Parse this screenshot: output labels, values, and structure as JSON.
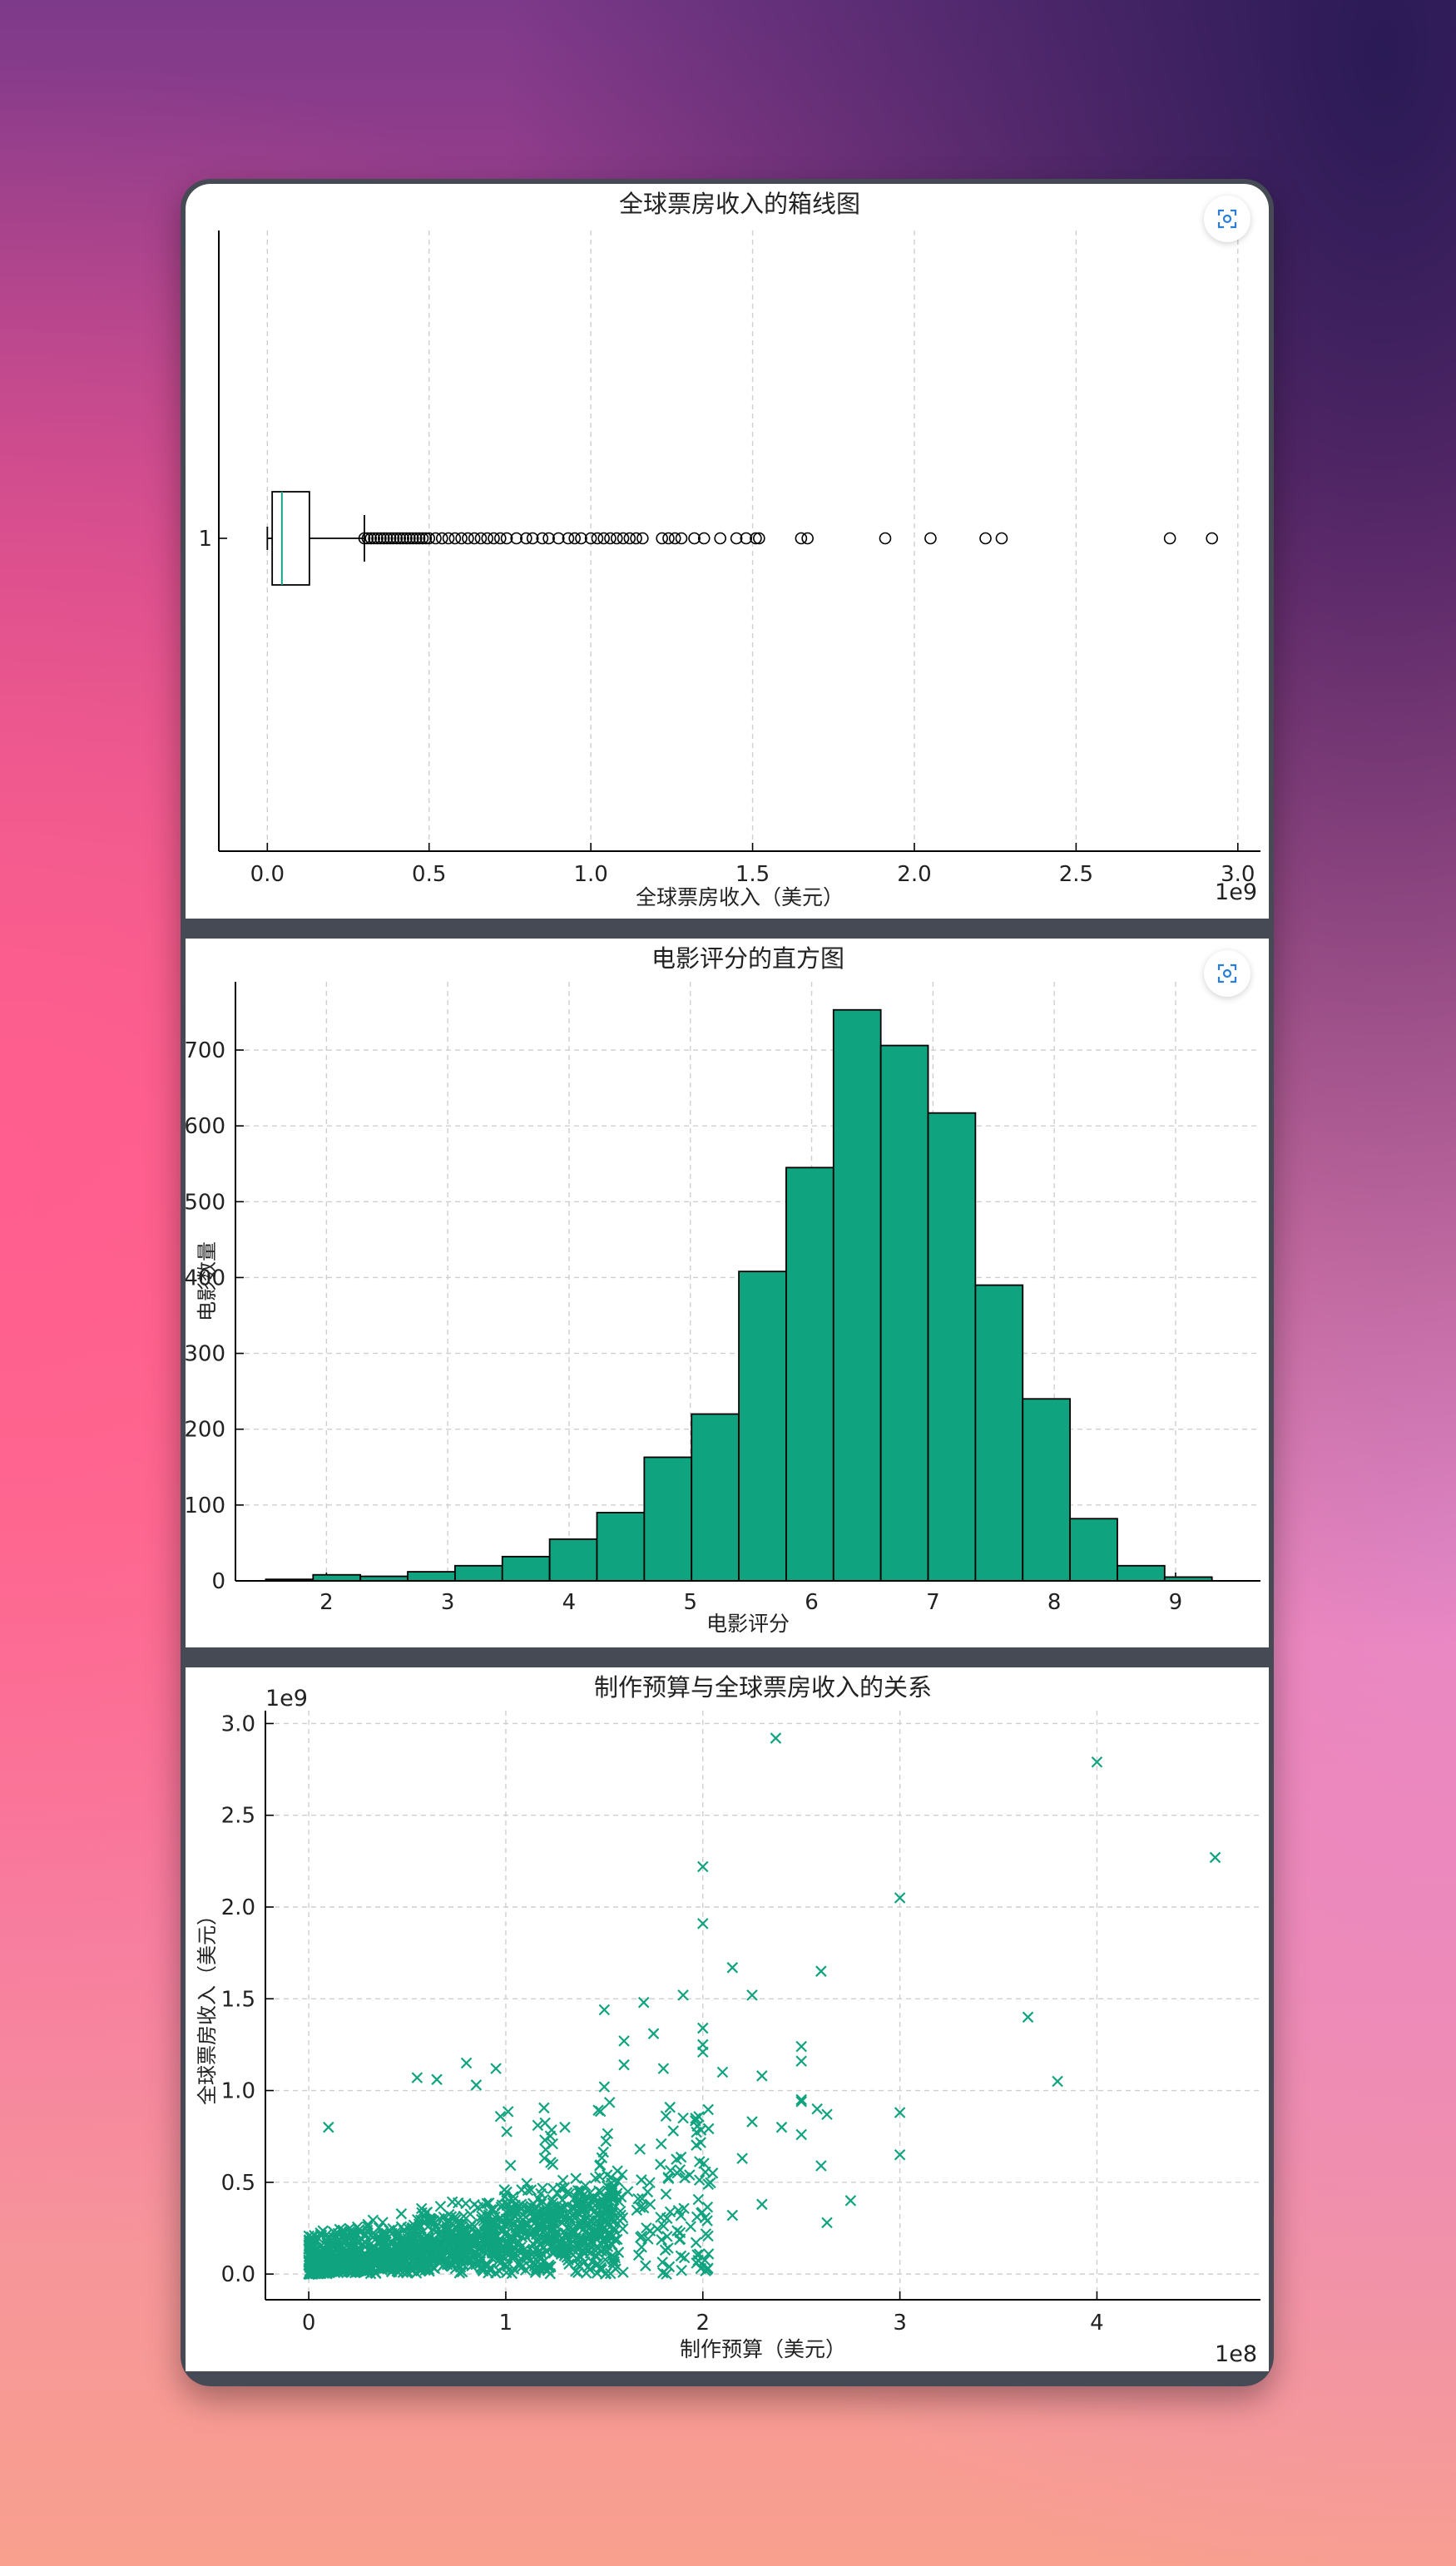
{
  "ui": {
    "accent": "#10a37f",
    "icons": [
      "focus-expand-icon"
    ]
  },
  "chart_data": [
    {
      "type": "box",
      "orientation": "horizontal",
      "title": "全球票房收入的箱线图",
      "xlabel": "全球票房收入（美元）",
      "x_offset_label": "1e9",
      "category_label": "1",
      "xlim": [
        -0.15,
        3.07
      ],
      "x_ticks": [
        0.0,
        0.5,
        1.0,
        1.5,
        2.0,
        2.5,
        3.0
      ],
      "x_tick_labels": [
        "0.0",
        "0.5",
        "1.0",
        "1.5",
        "2.0",
        "2.5",
        "3.0"
      ],
      "stats": {
        "whisker_low": 0.0,
        "q1": 0.015,
        "median": 0.045,
        "q3": 0.13,
        "whisker_high": 0.3
      },
      "outliers": [
        0.3,
        0.31,
        0.32,
        0.33,
        0.34,
        0.35,
        0.36,
        0.37,
        0.38,
        0.39,
        0.4,
        0.41,
        0.42,
        0.43,
        0.44,
        0.45,
        0.46,
        0.47,
        0.48,
        0.49,
        0.5,
        0.52,
        0.54,
        0.56,
        0.58,
        0.6,
        0.62,
        0.64,
        0.66,
        0.68,
        0.7,
        0.72,
        0.74,
        0.77,
        0.8,
        0.82,
        0.85,
        0.87,
        0.9,
        0.93,
        0.95,
        0.97,
        1.0,
        1.02,
        1.04,
        1.06,
        1.08,
        1.1,
        1.12,
        1.14,
        1.16,
        1.22,
        1.24,
        1.26,
        1.28,
        1.32,
        1.35,
        1.4,
        1.45,
        1.48,
        1.51,
        1.52,
        1.65,
        1.67,
        1.91,
        2.05,
        2.22,
        2.27,
        2.79,
        2.92
      ],
      "grid": true
    },
    {
      "type": "histogram",
      "title": "电影评分的直方图",
      "xlabel": "电影评分",
      "ylabel": "电影数量",
      "xlim": [
        1.25,
        9.7
      ],
      "ylim": [
        0,
        790
      ],
      "x_ticks": [
        2,
        3,
        4,
        5,
        6,
        7,
        8,
        9
      ],
      "y_ticks": [
        0,
        100,
        200,
        300,
        400,
        500,
        600,
        700
      ],
      "bin_edges": [
        1.5,
        1.89,
        2.28,
        2.67,
        3.06,
        3.45,
        3.84,
        4.23,
        4.62,
        5.01,
        5.4,
        5.79,
        6.18,
        6.57,
        6.96,
        7.35,
        7.74,
        8.13,
        8.52,
        8.91,
        9.3
      ],
      "counts": [
        2,
        8,
        6,
        12,
        20,
        32,
        55,
        90,
        163,
        220,
        408,
        545,
        753,
        706,
        617,
        390,
        240,
        82,
        20,
        5
      ],
      "bar_color": "#10a37f",
      "grid": true
    },
    {
      "type": "scatter",
      "title": "制作预算与全球票房收入的关系",
      "xlabel": "制作预算（美元）",
      "ylabel": "全球票房收入（美元）",
      "x_offset_label": "1e8",
      "y_offset_label": "1e9",
      "xlim": [
        -0.22,
        4.83
      ],
      "ylim": [
        -0.14,
        3.07
      ],
      "x_ticks": [
        0,
        1,
        2,
        3,
        4
      ],
      "y_ticks": [
        0.0,
        0.5,
        1.0,
        1.5,
        2.0,
        2.5,
        3.0
      ],
      "y_tick_labels": [
        "0.0",
        "0.5",
        "1.0",
        "1.5",
        "2.0",
        "2.5",
        "3.0"
      ],
      "marker": "x",
      "color": "#10a37f",
      "points": [
        [
          2.37,
          2.92
        ],
        [
          4.0,
          2.79
        ],
        [
          4.6,
          2.27
        ],
        [
          2.0,
          2.22
        ],
        [
          3.0,
          2.05
        ],
        [
          2.0,
          1.91
        ],
        [
          2.15,
          1.67
        ],
        [
          2.6,
          1.65
        ],
        [
          2.25,
          1.52
        ],
        [
          1.9,
          1.52
        ],
        [
          1.5,
          1.44
        ],
        [
          1.7,
          1.48
        ],
        [
          3.65,
          1.4
        ],
        [
          2.0,
          1.34
        ],
        [
          1.75,
          1.31
        ],
        [
          1.6,
          1.27
        ],
        [
          2.0,
          1.25
        ],
        [
          2.5,
          1.24
        ],
        [
          2.0,
          1.21
        ],
        [
          1.6,
          1.14
        ],
        [
          2.5,
          1.16
        ],
        [
          0.95,
          1.12
        ],
        [
          0.8,
          1.15
        ],
        [
          1.8,
          1.12
        ],
        [
          3.8,
          1.05
        ],
        [
          2.3,
          1.08
        ],
        [
          2.1,
          1.1
        ],
        [
          1.5,
          1.02
        ],
        [
          0.55,
          1.07
        ],
        [
          0.65,
          1.06
        ],
        [
          0.85,
          1.03
        ],
        [
          2.5,
          0.95
        ],
        [
          2.5,
          0.94
        ],
        [
          2.58,
          0.9
        ],
        [
          3.0,
          0.88
        ],
        [
          2.63,
          0.87
        ],
        [
          2.25,
          0.83
        ],
        [
          2.4,
          0.8
        ],
        [
          2.5,
          0.76
        ],
        [
          3.0,
          0.65
        ],
        [
          2.6,
          0.59
        ],
        [
          2.75,
          0.4
        ],
        [
          2.63,
          0.28
        ],
        [
          0.1,
          0.8
        ],
        [
          1.3,
          0.8
        ],
        [
          1.9,
          0.85
        ],
        [
          1.85,
          0.78
        ],
        [
          2.2,
          0.63
        ],
        [
          2.05,
          0.55
        ],
        [
          2.3,
          0.38
        ],
        [
          2.15,
          0.32
        ]
      ],
      "dense_cluster": "several thousand points concentrated at x 0–2.0e8, y 0–1.0e9",
      "grid": true
    }
  ]
}
